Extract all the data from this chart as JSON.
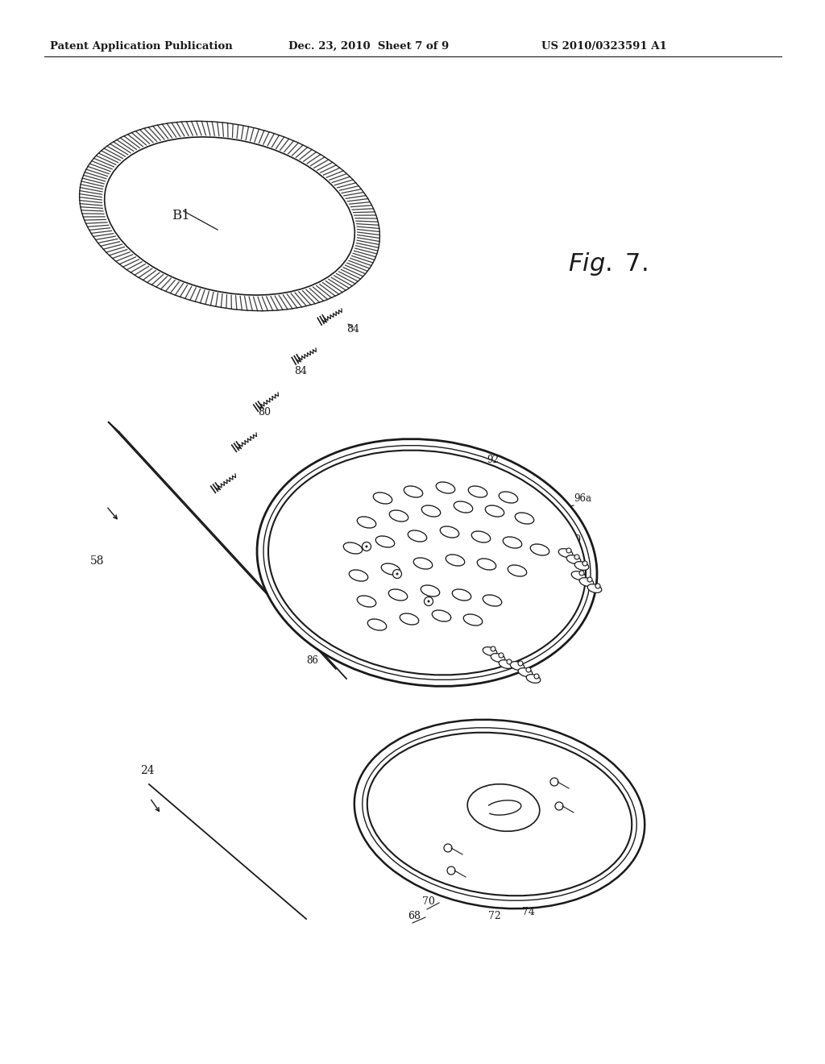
{
  "header_left": "Patent Application Publication",
  "header_mid": "Dec. 23, 2010  Sheet 7 of 9",
  "header_right": "US 2010/0323591 A1",
  "bg_color": "#ffffff",
  "line_color": "#1a1a1a"
}
